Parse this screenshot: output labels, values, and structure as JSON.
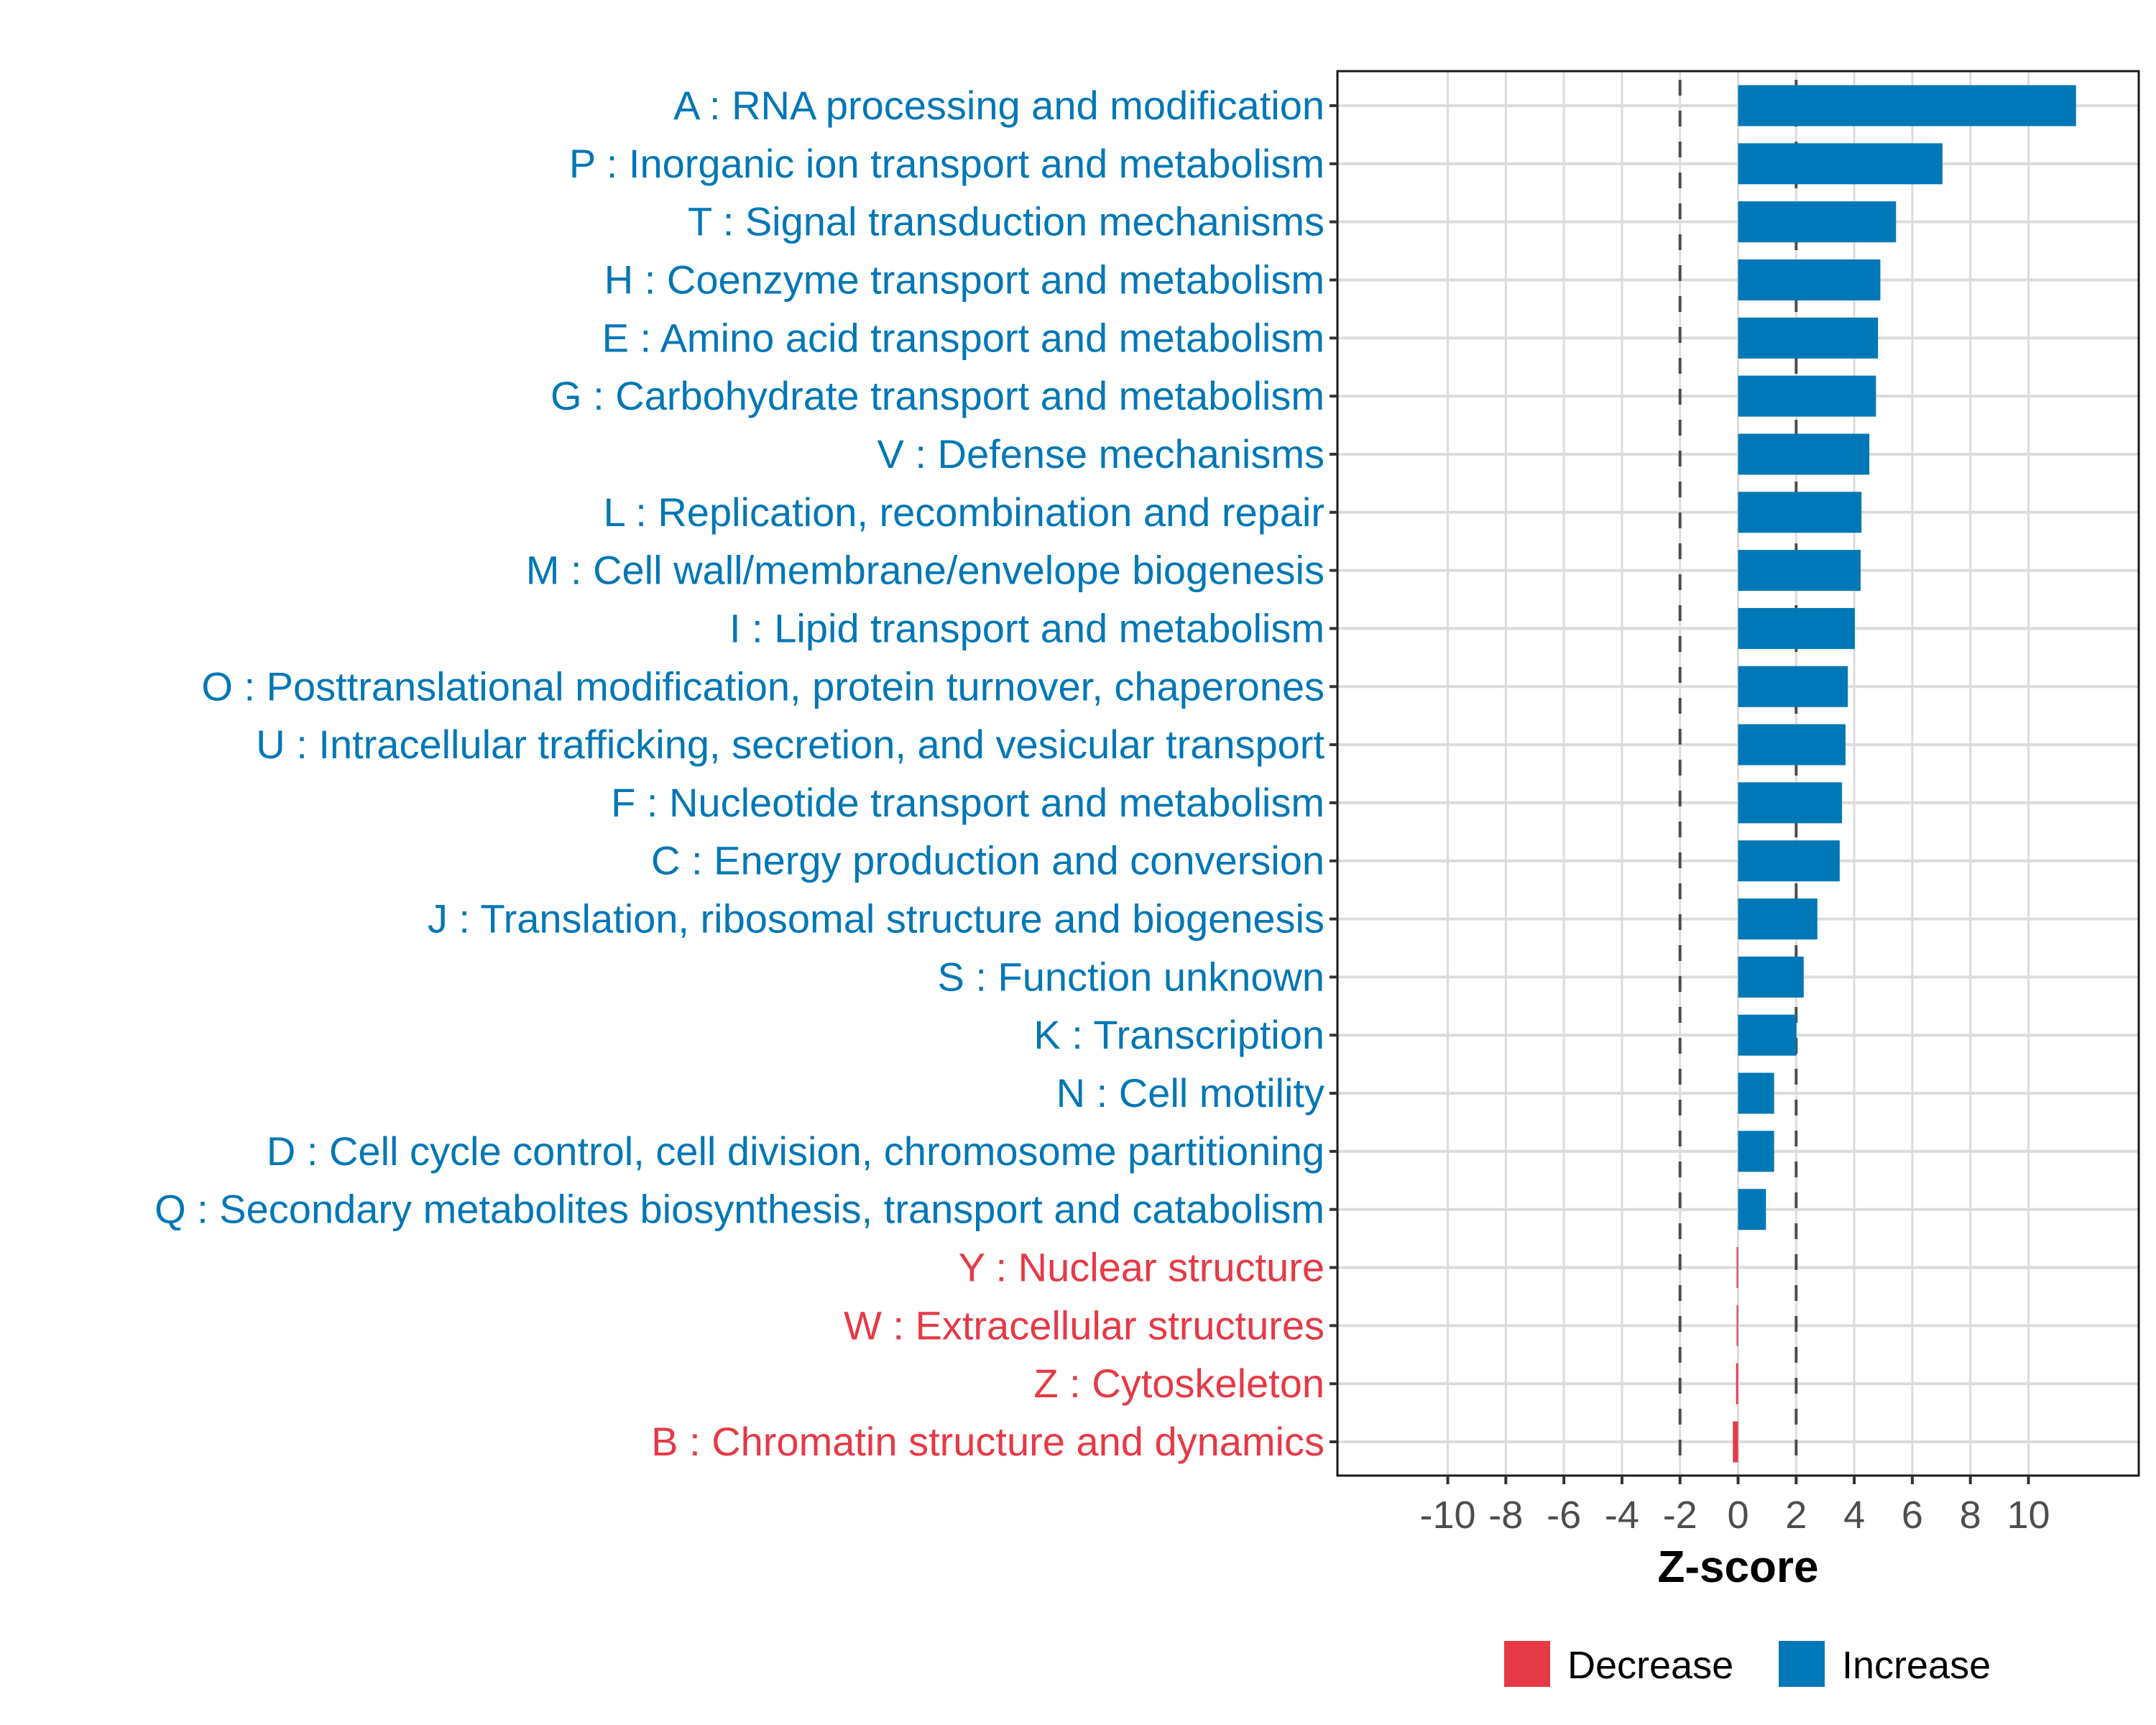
{
  "chart_data": {
    "type": "bar",
    "orientation": "horizontal",
    "title": "",
    "xlabel": "Z-score",
    "ylabel": "",
    "xlim": [
      -13.8,
      13.8
    ],
    "xticks": [
      -10,
      -8,
      -6,
      -4,
      -2,
      0,
      2,
      4,
      6,
      8,
      10
    ],
    "xtick_labels": [
      "-10",
      "-8",
      "-6",
      "-4",
      "-2",
      "0",
      "2",
      "4",
      "6",
      "8",
      "10"
    ],
    "grid": true,
    "reference_lines": [
      {
        "x": -2,
        "style": "dashed"
      },
      {
        "x": 2,
        "style": "dashed"
      }
    ],
    "categories": [
      "A : RNA processing and modification",
      "P : Inorganic ion transport and metabolism",
      "T : Signal transduction mechanisms",
      "H : Coenzyme transport and metabolism",
      "E : Amino acid transport and metabolism",
      "G : Carbohydrate transport and metabolism",
      "V : Defense mechanisms",
      "L : Replication, recombination and repair",
      "M : Cell wall/membrane/envelope biogenesis",
      "I : Lipid transport and metabolism",
      "O : Posttranslational modification, protein turnover, chaperones",
      "U : Intracellular trafficking, secretion, and vesicular transport",
      "F : Nucleotide transport and metabolism",
      "C : Energy production and conversion",
      "J : Translation, ribosomal structure and biogenesis",
      "S : Function unknown",
      "K : Transcription",
      "N : Cell motility",
      "D : Cell cycle control, cell division, chromosome partitioning",
      "Q : Secondary metabolites biosynthesis, transport and catabolism",
      "Y : Nuclear structure",
      "W : Extracellular structures",
      "Z : Cytoskeleton",
      "B : Chromatin structure and dynamics"
    ],
    "values": [
      11.64,
      7.04,
      5.44,
      4.9,
      4.82,
      4.75,
      4.52,
      4.25,
      4.22,
      4.02,
      3.78,
      3.7,
      3.58,
      3.5,
      2.73,
      2.26,
      2.01,
      1.24,
      1.24,
      0.96,
      -0.05,
      -0.05,
      -0.07,
      -0.18
    ],
    "groups": [
      "Increase",
      "Increase",
      "Increase",
      "Increase",
      "Increase",
      "Increase",
      "Increase",
      "Increase",
      "Increase",
      "Increase",
      "Increase",
      "Increase",
      "Increase",
      "Increase",
      "Increase",
      "Increase",
      "Increase",
      "Increase",
      "Increase",
      "Increase",
      "Decrease",
      "Decrease",
      "Decrease",
      "Decrease"
    ],
    "colors": {
      "Increase": "#0077B6",
      "Decrease": "#E63946"
    },
    "legend": {
      "position": "bottom",
      "entries": [
        {
          "label": "Decrease",
          "color": "#E63946"
        },
        {
          "label": "Increase",
          "color": "#0077B6"
        }
      ]
    }
  }
}
